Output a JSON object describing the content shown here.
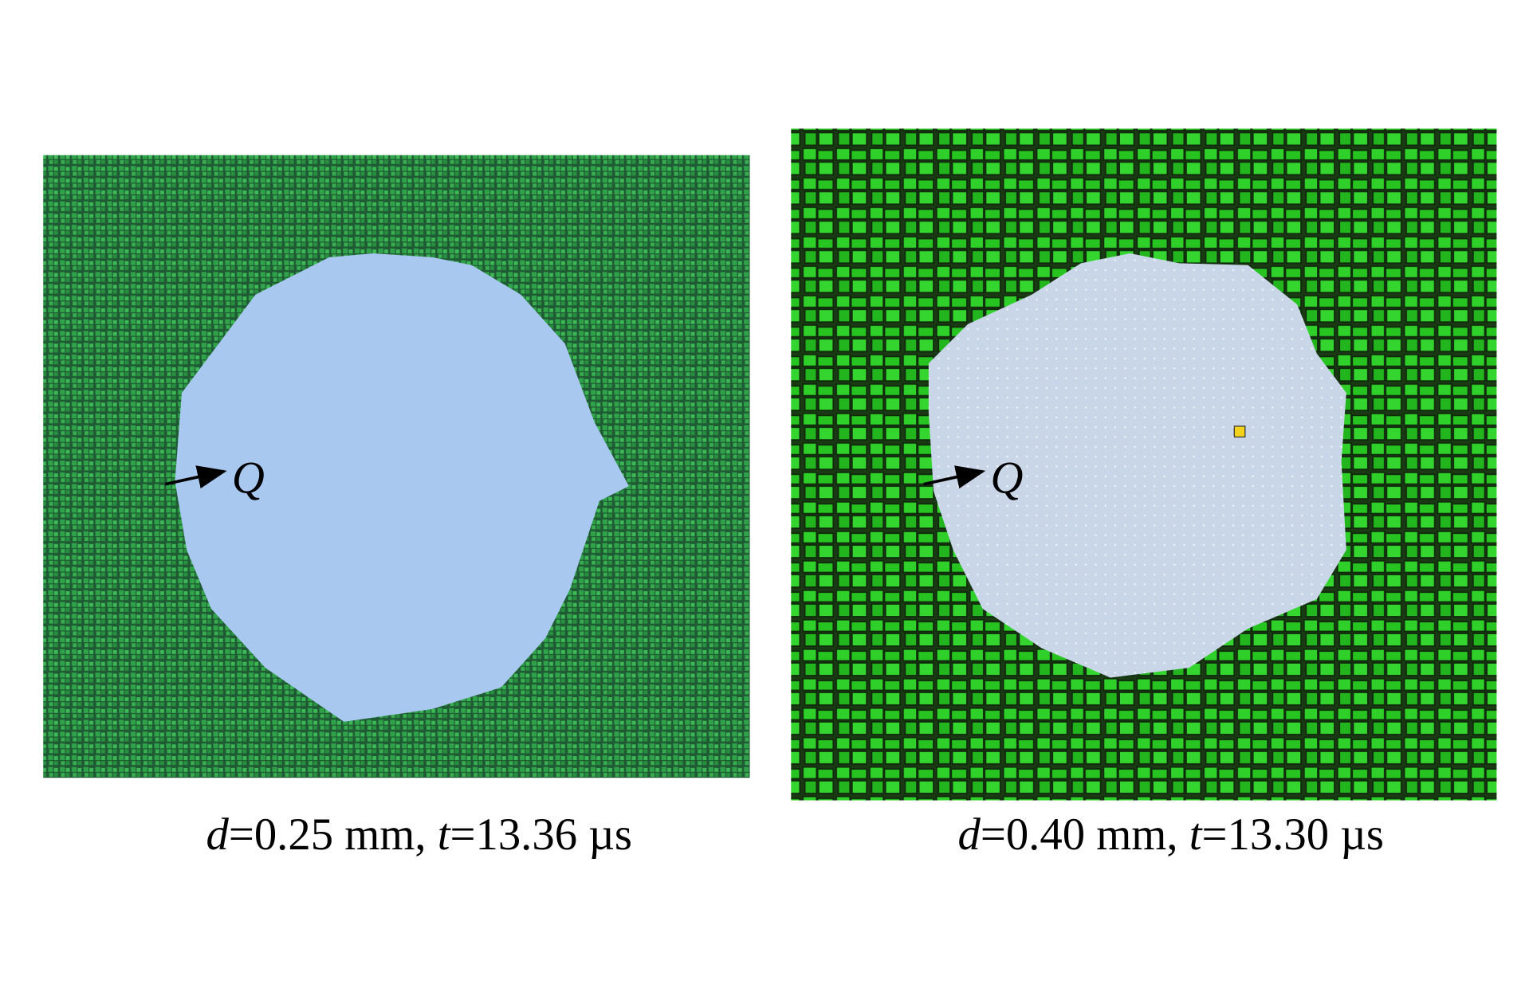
{
  "panels": [
    {
      "label": "Q",
      "caption": {
        "d_symbol": "d",
        "d_text": "=0.25 mm, ",
        "t_symbol": "t",
        "t_text": "=13.36 µs"
      }
    },
    {
      "label": "Q",
      "caption": {
        "d_symbol": "d",
        "d_text": "=0.40 mm, ",
        "t_symbol": "t",
        "t_text": "=13.30 µs"
      }
    }
  ]
}
